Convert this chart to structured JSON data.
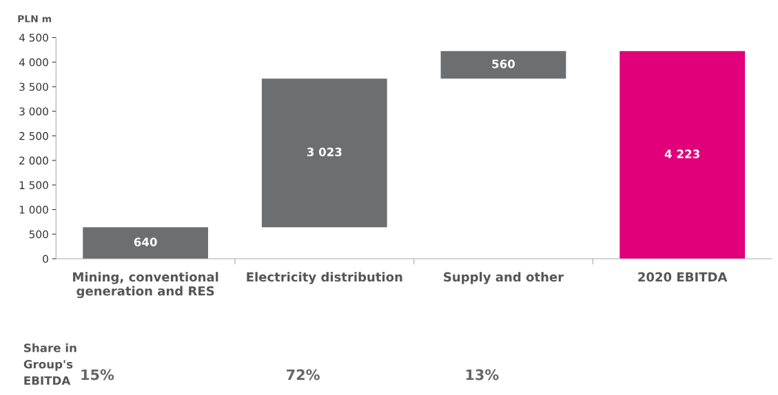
{
  "chart_data": {
    "type": "bar",
    "ylabel": "PLN m",
    "categories": [
      "Mining, conventional\ngeneration and RES",
      "Electricity distribution",
      "Supply and other",
      "2020 EBITDA"
    ],
    "values": [
      640,
      3023,
      560,
      4223
    ],
    "base": [
      0,
      640,
      3663,
      0
    ],
    "colors": [
      "#6d6e70",
      "#6d6e70",
      "#6d6e70",
      "#e2007a"
    ],
    "value_labels": [
      "640",
      "3 023",
      "560",
      "4 223"
    ],
    "ylim": [
      0,
      4500
    ],
    "yticks": [
      0,
      500,
      {
        "value": 1000,
        "label": "1 000"
      },
      {
        "value": 1500,
        "label": "1 500"
      },
      {
        "value": 2000,
        "label": "2 000"
      },
      {
        "value": 2500,
        "label": "2 500"
      },
      {
        "value": 3000,
        "label": "3 000"
      },
      {
        "value": 3500,
        "label": "3 500"
      },
      {
        "value": 4000,
        "label": "4 000"
      },
      {
        "value": 4500,
        "label": "4 500"
      }
    ],
    "grid": false,
    "legend": false,
    "annotations": [
      "Share in\nGroup's\nEBITDA",
      "15%",
      "72%",
      "13%"
    ]
  }
}
